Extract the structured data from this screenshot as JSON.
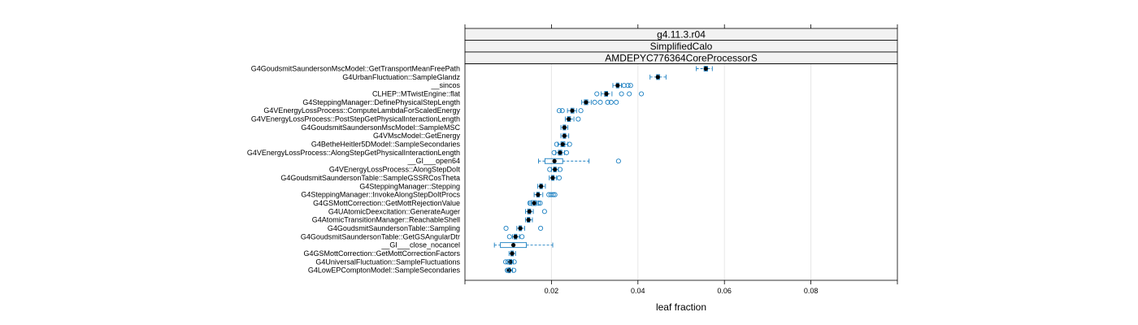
{
  "chart_data": {
    "type": "boxplot",
    "xlabel": "leaf fraction",
    "xlim": [
      0.0,
      0.1
    ],
    "xticks": [
      0.02,
      0.04,
      0.06,
      0.08
    ],
    "xtick_labels": [
      "0.02",
      "0.04",
      "0.06",
      "0.08"
    ],
    "grid": "vertical",
    "strips": [
      "g4.11.3.r04",
      "SimplifiedCalo",
      "AMDEPYC776364CoreProcessorS"
    ],
    "colors": {
      "box": "#1a7fc1",
      "median": "#000000",
      "grid": "#e6e6e6",
      "strip_bg": "#f2f2f2"
    },
    "rows": [
      {
        "label": "G4GoudsmitSaundersonMscModel::GetTransportMeanFreePath",
        "min": 0.0535,
        "q1": 0.0553,
        "median": 0.0557,
        "q3": 0.0561,
        "max": 0.0572,
        "outliers": []
      },
      {
        "label": "G4UrbanFluctuation::SampleGlandz",
        "min": 0.0428,
        "q1": 0.0443,
        "median": 0.0446,
        "q3": 0.045,
        "max": 0.0465,
        "outliers": []
      },
      {
        "label": "__sincos",
        "min": 0.0342,
        "q1": 0.035,
        "median": 0.0353,
        "q3": 0.0356,
        "max": 0.0362,
        "outliers": [
          0.0368,
          0.0377,
          0.0383
        ]
      },
      {
        "label": "CLHEP::MTwistEngine::flat",
        "min": 0.0315,
        "q1": 0.0323,
        "median": 0.0327,
        "q3": 0.033,
        "max": 0.034,
        "outliers": [
          0.0305,
          0.0362,
          0.038,
          0.0408
        ]
      },
      {
        "label": "G4SteppingManager::DefinePhysicalStepLength",
        "min": 0.027,
        "q1": 0.0276,
        "median": 0.028,
        "q3": 0.0284,
        "max": 0.0292,
        "outliers": [
          0.03,
          0.0313,
          0.033,
          0.0338,
          0.035
        ]
      },
      {
        "label": "G4VEnergyLossProcess::ComputeLambdaForScaledEnergy",
        "min": 0.0237,
        "q1": 0.0245,
        "median": 0.0248,
        "q3": 0.0252,
        "max": 0.0258,
        "outliers": [
          0.0218,
          0.0225,
          0.0268
        ]
      },
      {
        "label": "G4VEnergyLossProcess::PostStepGetPhysicalInteractionLength",
        "min": 0.0232,
        "q1": 0.0237,
        "median": 0.024,
        "q3": 0.0244,
        "max": 0.0252,
        "outliers": [
          0.0262
        ]
      },
      {
        "label": "G4GoudsmitSaundersonMscModel::SampleMSC",
        "min": 0.0222,
        "q1": 0.0227,
        "median": 0.023,
        "q3": 0.0233,
        "max": 0.0238,
        "outliers": []
      },
      {
        "label": "G4VMscModel::GetEnergy",
        "min": 0.0222,
        "q1": 0.0227,
        "median": 0.023,
        "q3": 0.0233,
        "max": 0.024,
        "outliers": []
      },
      {
        "label": "G4BetheHeitler5DModel::SampleSecondaries",
        "min": 0.0215,
        "q1": 0.0222,
        "median": 0.0226,
        "q3": 0.0231,
        "max": 0.0238,
        "outliers": [
          0.0212,
          0.0242
        ]
      },
      {
        "label": "G4VEnergyLossProcess::AlongStepGetPhysicalInteractionLength",
        "min": 0.021,
        "q1": 0.0216,
        "median": 0.022,
        "q3": 0.0224,
        "max": 0.023,
        "outliers": [
          0.0206,
          0.0235
        ]
      },
      {
        "label": "__GI___open64",
        "min": 0.017,
        "q1": 0.0185,
        "median": 0.0207,
        "q3": 0.0226,
        "max": 0.0287,
        "outliers": [
          0.0355
        ]
      },
      {
        "label": "G4VEnergyLossProcess::AlongStepDoIt",
        "min": 0.02,
        "q1": 0.0205,
        "median": 0.0208,
        "q3": 0.0211,
        "max": 0.0216,
        "outliers": [
          0.0196,
          0.022
        ]
      },
      {
        "label": "G4GoudsmitSaundersonTable::SampleGSSRCosTheta",
        "min": 0.0195,
        "q1": 0.02,
        "median": 0.0203,
        "q3": 0.0206,
        "max": 0.0212,
        "outliers": [
          0.0218
        ]
      },
      {
        "label": "G4SteppingManager::Stepping",
        "min": 0.0168,
        "q1": 0.0173,
        "median": 0.0176,
        "q3": 0.0179,
        "max": 0.0186,
        "outliers": []
      },
      {
        "label": "G4SteppingManager::InvokeAlongStepDoItProcs",
        "min": 0.016,
        "q1": 0.0166,
        "median": 0.0169,
        "q3": 0.0172,
        "max": 0.018,
        "outliers": [
          0.0194,
          0.0199,
          0.0204,
          0.0208
        ]
      },
      {
        "label": "G4GSMottCorrection::GetMottRejectionValue",
        "min": 0.0148,
        "q1": 0.0153,
        "median": 0.016,
        "q3": 0.0165,
        "max": 0.017,
        "outliers": [
          0.015,
          0.017,
          0.0174
        ]
      },
      {
        "label": "G4UAtomicDeexcitation::GenerateAuger",
        "min": 0.014,
        "q1": 0.0145,
        "median": 0.0149,
        "q3": 0.0152,
        "max": 0.0158,
        "outliers": [
          0.0184
        ]
      },
      {
        "label": "G4AtomicTransitionManager::ReachableShell",
        "min": 0.014,
        "q1": 0.0144,
        "median": 0.0147,
        "q3": 0.015,
        "max": 0.0156,
        "outliers": []
      },
      {
        "label": "G4GoudsmitSaundersonTable::Sampling",
        "min": 0.012,
        "q1": 0.0125,
        "median": 0.0128,
        "q3": 0.0131,
        "max": 0.0138,
        "outliers": [
          0.0095,
          0.0175
        ]
      },
      {
        "label": "G4GoudsmitSaundersonTable::GetGSAngularDtr",
        "min": 0.011,
        "q1": 0.0114,
        "median": 0.0117,
        "q3": 0.012,
        "max": 0.0126,
        "outliers": [
          0.0103,
          0.0132
        ]
      },
      {
        "label": "__GI___close_nocancel",
        "min": 0.0068,
        "q1": 0.0082,
        "median": 0.0112,
        "q3": 0.0142,
        "max": 0.0203,
        "outliers": []
      },
      {
        "label": "G4GSMottCorrection::GetMottCorrectionFactors",
        "min": 0.0102,
        "q1": 0.0106,
        "median": 0.0109,
        "q3": 0.0112,
        "max": 0.0117,
        "outliers": []
      },
      {
        "label": "G4UniversalFluctuation::SampleFluctuations",
        "min": 0.0098,
        "q1": 0.0102,
        "median": 0.0105,
        "q3": 0.0108,
        "max": 0.0112,
        "outliers": [
          0.0094,
          0.0099,
          0.0114
        ]
      },
      {
        "label": "G4LowEPComptonModel::SampleSecondaries",
        "min": 0.0096,
        "q1": 0.01,
        "median": 0.0102,
        "q3": 0.0105,
        "max": 0.011,
        "outliers": [
          0.0098,
          0.0113
        ]
      }
    ]
  }
}
